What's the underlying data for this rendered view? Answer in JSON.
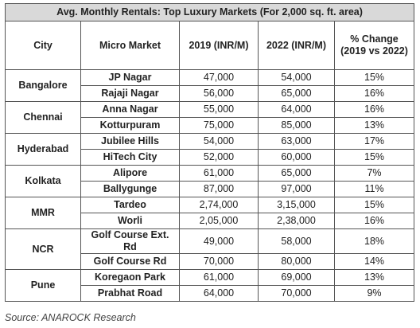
{
  "table": {
    "title": "Avg. Monthly Rentals: Top Luxury Markets (For 2,000 sq. ft. area)",
    "header": [
      "City",
      "Micro Market",
      "2019 (INR/M)",
      "2022 (INR/M)",
      "% Change (2019 vs 2022)"
    ],
    "groups": [
      {
        "city": "Bangalore",
        "rows": [
          [
            "JP Nagar",
            "47,000",
            "54,000",
            "15%"
          ],
          [
            "Rajaji Nagar",
            "56,000",
            "65,000",
            "16%"
          ]
        ]
      },
      {
        "city": "Chennai",
        "rows": [
          [
            "Anna Nagar",
            "55,000",
            "64,000",
            "16%"
          ],
          [
            "Kotturpuram",
            "75,000",
            "85,000",
            "13%"
          ]
        ]
      },
      {
        "city": "Hyderabad",
        "rows": [
          [
            "Jubilee Hills",
            "54,000",
            "63,000",
            "17%"
          ],
          [
            "HiTech City",
            "52,000",
            "60,000",
            "15%"
          ]
        ]
      },
      {
        "city": "Kolkata",
        "rows": [
          [
            "Alipore",
            "61,000",
            "65,000",
            "7%"
          ],
          [
            "Ballygunge",
            "87,000",
            "97,000",
            "11%"
          ]
        ]
      },
      {
        "city": "MMR",
        "rows": [
          [
            "Tardeo",
            "2,74,000",
            "3,15,000",
            "15%"
          ],
          [
            "Worli",
            "2,05,000",
            "2,38,000",
            "16%"
          ]
        ]
      },
      {
        "city": "NCR",
        "rows": [
          [
            "Golf Course Ext. Rd",
            "49,000",
            "58,000",
            "18%"
          ],
          [
            "Golf Course Rd",
            "70,000",
            "80,000",
            "14%"
          ]
        ]
      },
      {
        "city": "Pune",
        "rows": [
          [
            "Koregaon Park",
            "61,000",
            "69,000",
            "13%"
          ],
          [
            "Prabhat Road",
            "64,000",
            "70,000",
            "9%"
          ]
        ]
      }
    ]
  },
  "source": "Source: ANAROCK Research"
}
